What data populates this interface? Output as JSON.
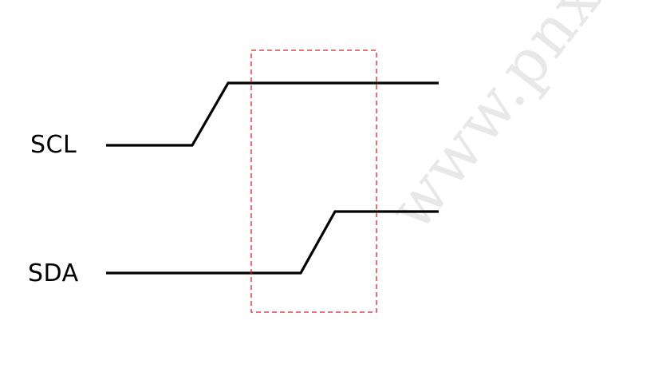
{
  "signals": {
    "scl_label": "SCL",
    "sda_label": "SDA"
  },
  "watermark": {
    "text": "www.pnxuetang"
  },
  "colors": {
    "signal_line": "#000000",
    "highlight_box": "#d8232a",
    "watermark": "#d6d6d6",
    "background": "#ffffff"
  }
}
